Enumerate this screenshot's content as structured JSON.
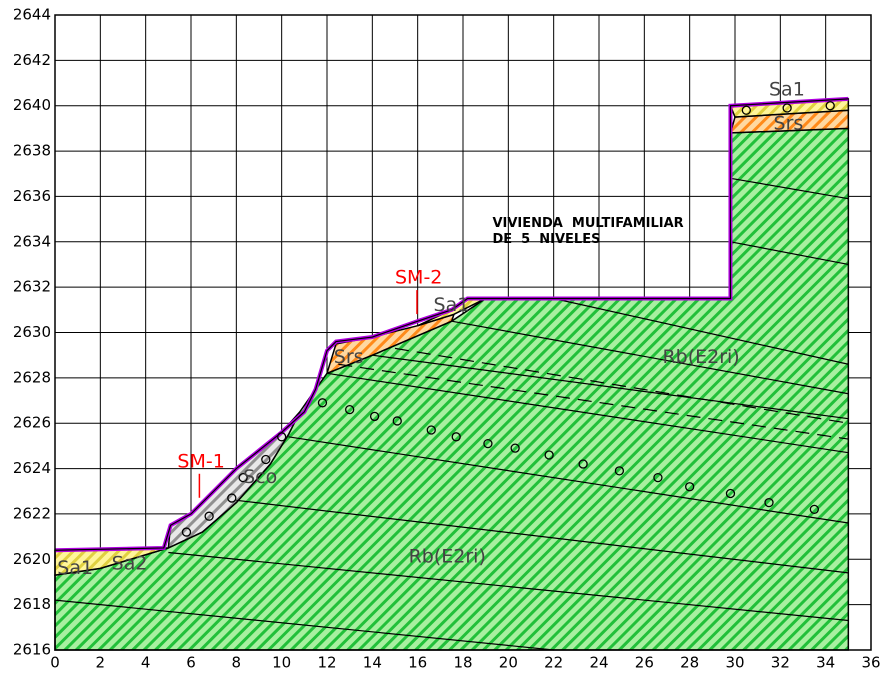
{
  "chart_data": {
    "type": "cross-section",
    "xlim": [
      0,
      36
    ],
    "ylim": [
      2616,
      2644
    ],
    "xticks": [
      0,
      2,
      4,
      6,
      8,
      10,
      12,
      14,
      16,
      18,
      20,
      22,
      24,
      26,
      28,
      30,
      32,
      34,
      36
    ],
    "yticks": [
      2616,
      2618,
      2620,
      2622,
      2624,
      2626,
      2628,
      2630,
      2632,
      2634,
      2636,
      2638,
      2640,
      2642,
      2644
    ],
    "grid": true,
    "layers": [
      {
        "color": "#a8f0a0",
        "hatch": "#22c03a",
        "x": [
          0,
          35,
          35,
          29.8,
          29.8,
          19,
          17.5,
          14,
          12,
          11.5,
          10.8,
          10.3,
          9.5,
          8,
          6.5,
          5,
          4,
          2,
          0
        ],
        "values": [
          2616,
          2616,
          2639,
          2638.8,
          2631.5,
          2631.5,
          2630.5,
          2629,
          2628.2,
          2627.5,
          2626.5,
          2625.5,
          2624.2,
          2622.5,
          2621.2,
          2620.5,
          2620.2,
          2619.6,
          2619.3
        ]
      },
      {
        "color": "#e8e8e8",
        "hatch": "#909090",
        "x": [
          5,
          5.1,
          6,
          7,
          8,
          9,
          10,
          10.8,
          10.3,
          9.5,
          8,
          6.5,
          5
        ],
        "values": [
          2620.5,
          2621.5,
          2622,
          2623,
          2624,
          2624.8,
          2625.6,
          2626.5,
          2625.5,
          2624.2,
          2622.5,
          2621.2,
          2620.5
        ]
      },
      {
        "color": "#ffd8a0",
        "hatch": "#ff8a1a",
        "x": [
          12,
          12.4,
          14,
          16,
          17.6,
          17.5,
          14,
          12
        ],
        "values": [
          2628.2,
          2629.5,
          2629.8,
          2630.3,
          2630.8,
          2630.5,
          2629,
          2628.2
        ]
      },
      {
        "color": "#fff59a",
        "hatch": "#e0d040",
        "x": [
          16,
          17.5,
          18.2,
          19,
          17.6
        ],
        "values": [
          2630.3,
          2631,
          2631.5,
          2631.5,
          2630.8
        ]
      },
      {
        "color": "#ffd8a0",
        "hatch": "#ff8a1a",
        "x": [
          29.8,
          35,
          35,
          30
        ],
        "values": [
          2638.8,
          2639,
          2639.8,
          2639.5
        ]
      },
      {
        "color": "#fff59a",
        "hatch": "#e0d040",
        "x": [
          29.8,
          35,
          35,
          30
        ],
        "values": [
          2640,
          2640.3,
          2639.8,
          2639.5
        ]
      },
      {
        "color": "#fff59a",
        "hatch": "#e0d040",
        "x": [
          0,
          2,
          4,
          5,
          4.8,
          0
        ],
        "values": [
          2619.3,
          2619.6,
          2620.2,
          2620.5,
          2620.5,
          2620.4
        ]
      }
    ],
    "surface": {
      "color": "#b000e0",
      "x": [
        0,
        4.8,
        5.1,
        6,
        7,
        8,
        9,
        10,
        11,
        11.5,
        12,
        12.4,
        14,
        16,
        17.5,
        18.2,
        29.8,
        29.8,
        35
      ],
      "values": [
        2620.4,
        2620.5,
        2621.5,
        2622,
        2623,
        2624,
        2624.8,
        2625.6,
        2626.5,
        2627.5,
        2629.2,
        2629.6,
        2629.8,
        2630.5,
        2631,
        2631.5,
        2631.5,
        2640,
        2640.3
      ]
    },
    "lines": [
      {
        "x": [
          0,
          22
        ],
        "values": [
          2618.2,
          2616
        ]
      },
      {
        "x": [
          5,
          35
        ],
        "values": [
          2620.3,
          2617.3
        ]
      },
      {
        "x": [
          8,
          35
        ],
        "values": [
          2622.6,
          2619.4
        ]
      },
      {
        "x": [
          10.3,
          35
        ],
        "values": [
          2625.4,
          2621.6
        ]
      },
      {
        "x": [
          12,
          35
        ],
        "values": [
          2628.2,
          2624.7
        ]
      },
      {
        "x": [
          14,
          35
        ],
        "values": [
          2629,
          2626.2
        ]
      },
      {
        "x": [
          17.5,
          35
        ],
        "values": [
          2630.5,
          2627.3
        ]
      },
      {
        "x": [
          22,
          35
        ],
        "values": [
          2631.5,
          2628.6
        ]
      },
      {
        "x": [
          29.8,
          35
        ],
        "values": [
          2634,
          2633
        ]
      },
      {
        "x": [
          29.8,
          35
        ],
        "values": [
          2636.8,
          2635.9
        ]
      }
    ],
    "dashed": [
      {
        "x": [
          12.5,
          35
        ],
        "values": [
          2628.6,
          2625.3
        ]
      },
      {
        "x": [
          15,
          35
        ],
        "values": [
          2629.3,
          2626
        ]
      }
    ],
    "points": {
      "x": [
        10,
        11.8,
        13,
        14.1,
        15.1,
        16.6,
        17.7,
        19.1,
        20.3,
        21.8,
        23.3,
        24.9,
        26.6,
        28,
        29.8,
        31.5,
        33.5,
        5.8,
        6.8,
        7.8,
        8.3,
        9.3,
        30.5,
        32.3,
        34.2
      ],
      "values": [
        2625.4,
        2626.9,
        2626.6,
        2626.3,
        2626.1,
        2625.7,
        2625.4,
        2625.1,
        2624.9,
        2624.6,
        2624.2,
        2623.9,
        2623.6,
        2623.2,
        2622.9,
        2622.5,
        2622.2,
        2621.2,
        2621.9,
        2622.7,
        2623.6,
        2624.4,
        2639.8,
        2639.9,
        2640
      ]
    },
    "annotations": [
      {
        "text": "Sa1",
        "x": 31.5,
        "y": 2640.7,
        "color": "#444444"
      },
      {
        "text": "Srs",
        "x": 31.7,
        "y": 2639.2,
        "color": "#444444"
      },
      {
        "text": "VIVIENDA  MULTIFAMILIAR",
        "x": 19.3,
        "y": 2634.8,
        "color": "#000000",
        "bold": true
      },
      {
        "text": "DE  5  NIVELES",
        "x": 19.3,
        "y": 2634.1,
        "color": "#000000",
        "bold": true
      },
      {
        "text": "SM-2",
        "x": 15,
        "y": 2632.4,
        "color": "#ff0000"
      },
      {
        "text": "Sa1",
        "x": 16.7,
        "y": 2631.2,
        "color": "#444444"
      },
      {
        "text": "Srs",
        "x": 12.3,
        "y": 2628.9,
        "color": "#444444"
      },
      {
        "text": "Rb(E2ri)",
        "x": 26.8,
        "y": 2628.9,
        "color": "#444444"
      },
      {
        "text": "SM-1",
        "x": 5.4,
        "y": 2624.3,
        "color": "#ff0000"
      },
      {
        "text": "Sco",
        "x": 8.3,
        "y": 2623.6,
        "color": "#444444"
      },
      {
        "text": "Rb(E2ri)",
        "x": 15.6,
        "y": 2620.1,
        "color": "#444444"
      },
      {
        "text": "Sa1",
        "x": 0.1,
        "y": 2619.6,
        "color": "#444444"
      },
      {
        "text": "Sa2",
        "x": 2.5,
        "y": 2619.8,
        "color": "#444444"
      }
    ]
  }
}
